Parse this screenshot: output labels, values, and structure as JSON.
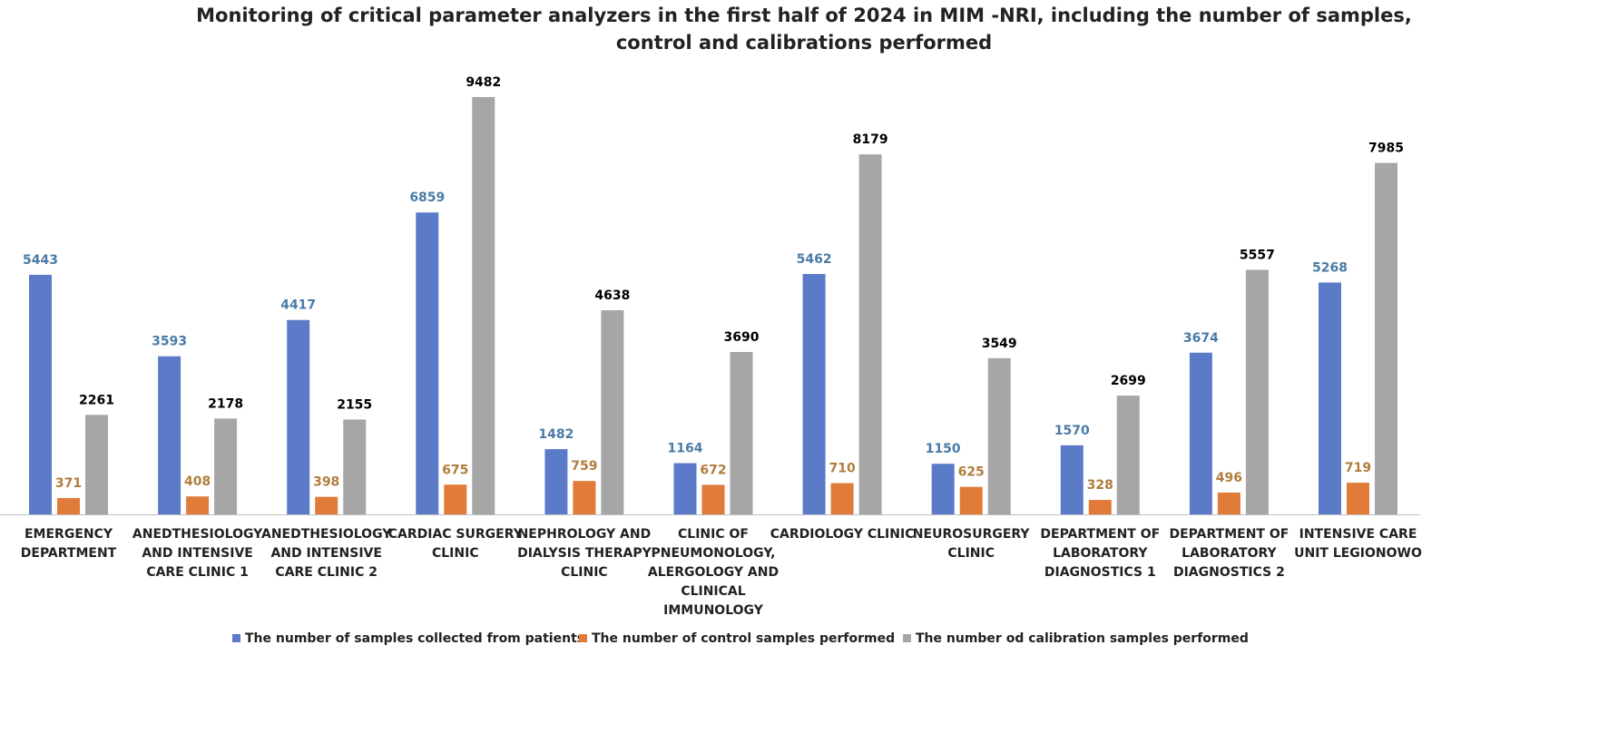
{
  "chart_data": {
    "type": "bar",
    "title": [
      "Monitoring of critical parameter analyzers in the first half of 2024  in MIM -NRI, including  the number of samples,",
      "control and calibrations performed"
    ],
    "categories": [
      [
        "EMERGENCY",
        "DEPARTMENT"
      ],
      [
        "ANEDTHESIOLOGY",
        "AND INTENSIVE",
        "CARE CLINIC 1"
      ],
      [
        "ANEDTHESIOLOGY",
        "AND INTENSIVE",
        "CARE CLINIC 2"
      ],
      [
        "CARDIAC SURGERY",
        "CLINIC"
      ],
      [
        "NEPHROLOGY AND",
        "DIALYSIS THERAPY",
        "CLINIC"
      ],
      [
        "CLINIC OF",
        "PNEUMONOLOGY,",
        "ALERGOLOGY AND",
        "CLINICAL",
        "IMMUNOLOGY"
      ],
      [
        "CARDIOLOGY CLINIC"
      ],
      [
        "NEUROSURGERY",
        "CLINIC"
      ],
      [
        "DEPARTMENT OF",
        "LABORATORY",
        "DIAGNOSTICS 1"
      ],
      [
        "DEPARTMENT OF",
        "LABORATORY",
        "DIAGNOSTICS 2"
      ],
      [
        "INTENSIVE CARE",
        "UNIT LEGIONOWO"
      ]
    ],
    "series": [
      {
        "name": "The number of samples collected from patients",
        "values": [
          5443,
          3593,
          4417,
          6859,
          1482,
          1164,
          5462,
          1150,
          1570,
          3674,
          5268
        ],
        "color": "#5b7bc9",
        "label_color": "#4a7ba6"
      },
      {
        "name": "The number of control samples performed",
        "values": [
          371,
          408,
          398,
          675,
          759,
          672,
          710,
          625,
          328,
          496,
          719
        ],
        "color": "#e07b39",
        "label_color": "#b07d3c"
      },
      {
        "name": "The number od calibration samples performed",
        "values": [
          2261,
          2178,
          2155,
          9482,
          4638,
          3690,
          8179,
          3549,
          2699,
          5557,
          7985
        ],
        "color": "#a6a6a6",
        "label_color": "#000000"
      }
    ],
    "ylim": [
      0,
      10000
    ],
    "grid": false,
    "legend_position": "bottom"
  }
}
